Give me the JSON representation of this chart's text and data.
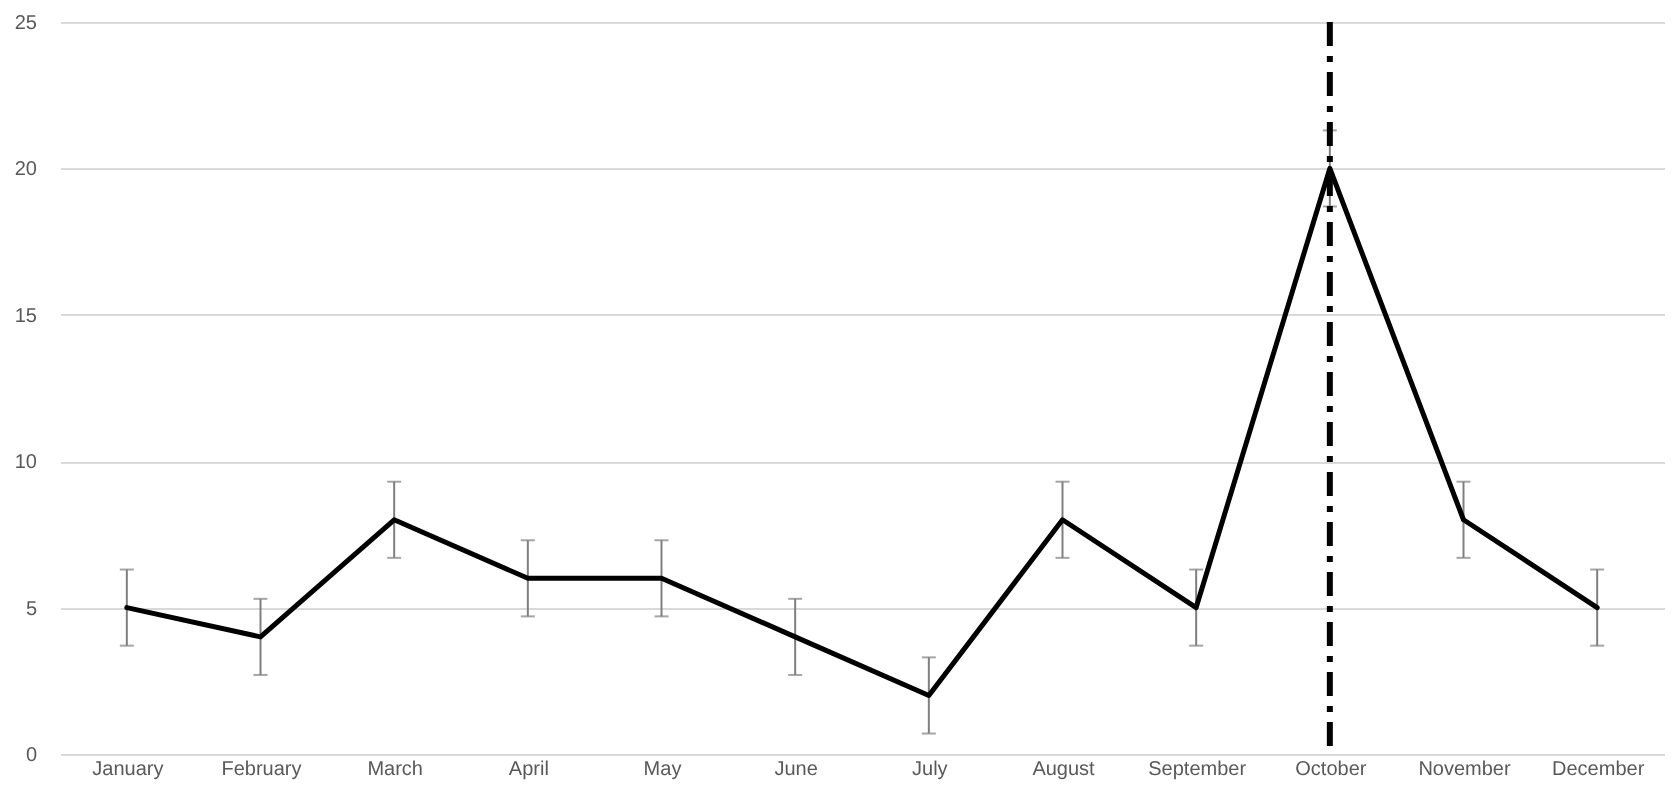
{
  "chart_data": {
    "type": "line",
    "categories": [
      "January",
      "February",
      "March",
      "April",
      "May",
      "June",
      "July",
      "August",
      "September",
      "October",
      "November",
      "December"
    ],
    "series": [
      {
        "color": "#000000",
        "values": [
          5,
          4,
          8,
          6,
          6,
          4,
          2,
          8,
          5,
          20,
          8,
          5
        ],
        "errors": [
          1.3,
          1.3,
          1.3,
          1.3,
          1.3,
          1.3,
          1.3,
          1.3,
          1.3,
          1.3,
          1.3,
          1.3
        ]
      }
    ],
    "ylim": [
      0,
      25
    ],
    "yticks": [
      0,
      5,
      10,
      15,
      20,
      25
    ],
    "grid": "y",
    "marker": "none",
    "line_style": "solid",
    "ref_lines": [
      {
        "axis": "x",
        "value": "October",
        "color": "#000000",
        "line_style": "dashed"
      }
    ]
  }
}
